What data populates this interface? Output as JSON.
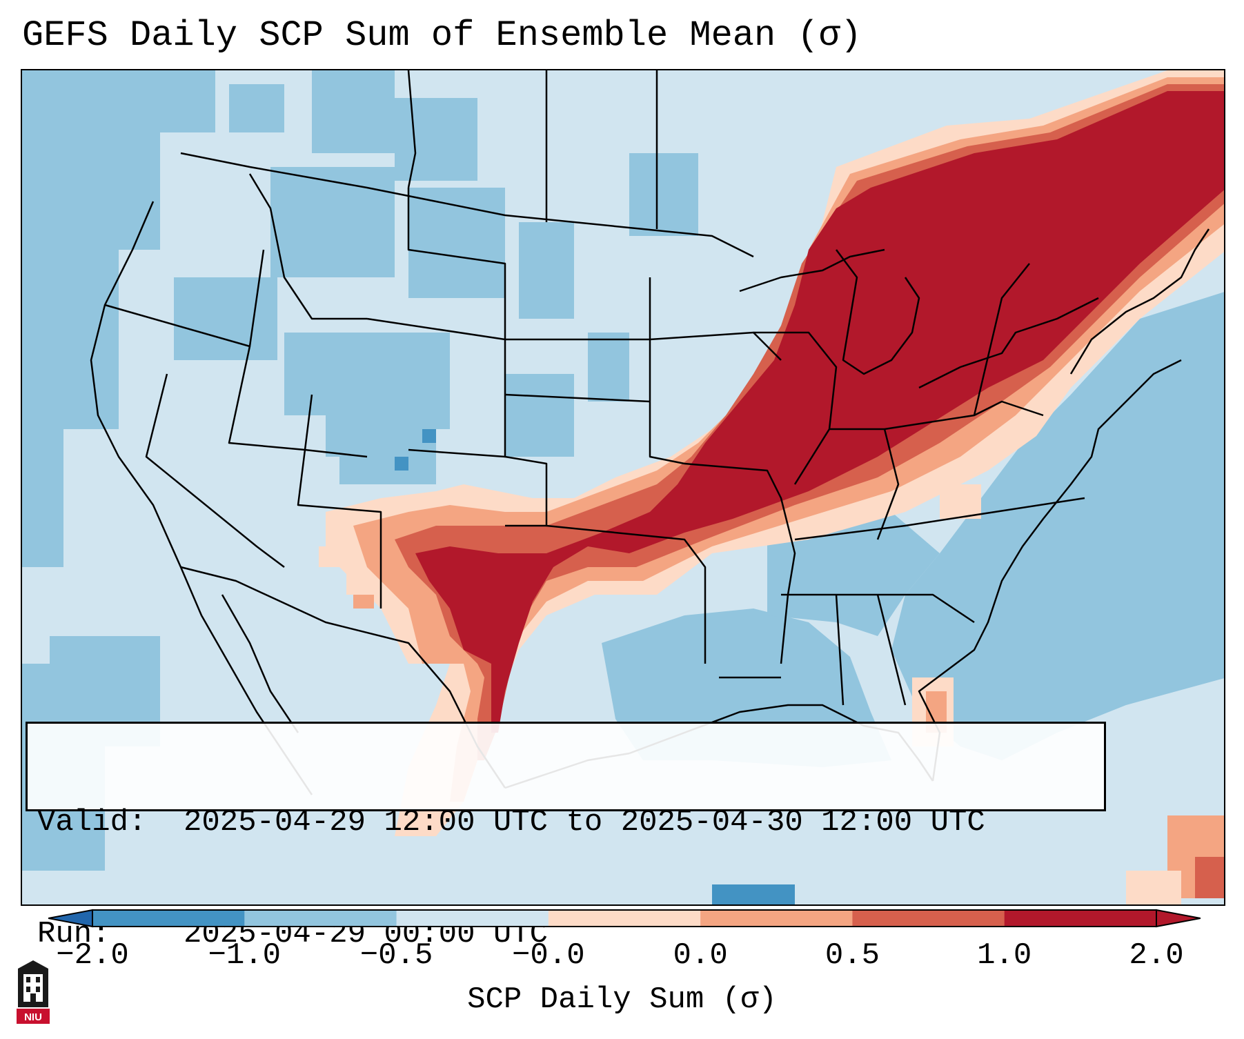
{
  "title": "GEFS Daily SCP Sum of Ensemble Mean (σ)",
  "info": {
    "valid_key": "Valid:",
    "valid_value": "2025-04-29 12:00 UTC to 2025-04-30 12:00 UTC",
    "run_key": "Run:",
    "run_value": "2025-04-29 00:00 UTC"
  },
  "colorbar": {
    "label": "SCP Daily Sum (σ)",
    "tick_labels": [
      "−2.0",
      "−1.0",
      "−0.5",
      "−0.0",
      "0.0",
      "0.5",
      "1.0",
      "2.0"
    ],
    "bin_colors": [
      "#4393c3",
      "#92c5de",
      "#d1e5f0",
      "#fddbc7",
      "#f4a582",
      "#d6604d",
      "#b2182b"
    ],
    "extend_low_color": "#2166ac",
    "extend_high_color": "#b2182b"
  },
  "map": {
    "projection": "Lambert Conformal (CONUS)",
    "field": "SCP daily sum, ensemble mean anomaly",
    "ocean_color": "#92c5de",
    "land_color": "#d1e5f0",
    "outline_color": "#000000"
  },
  "logo": {
    "text": "NIU",
    "color": "#c8102e"
  }
}
